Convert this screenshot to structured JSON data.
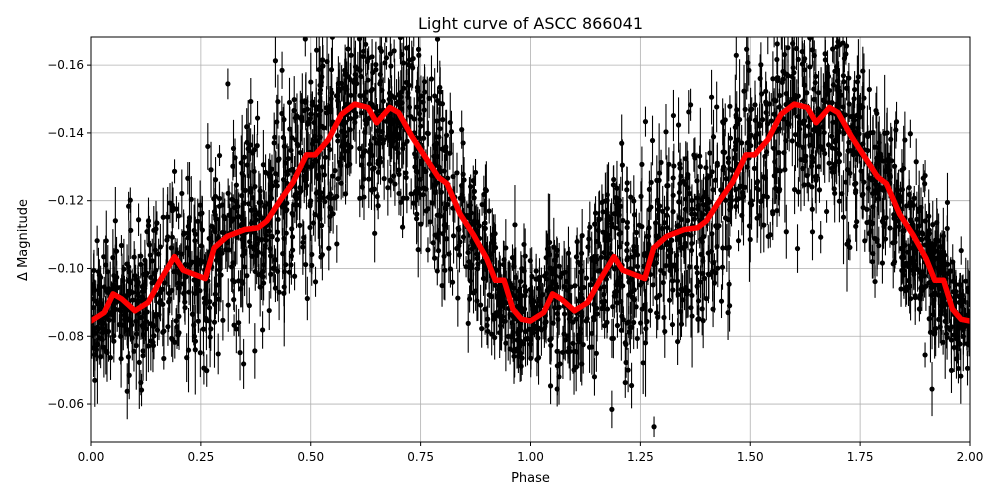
{
  "chart_data": {
    "type": "scatter",
    "title": "Light curve of ASCC 866041",
    "xlabel": "Phase",
    "ylabel": "Δ Magnitude",
    "xlim": [
      0,
      2
    ],
    "ylim": [
      -0.0488,
      -0.1683
    ],
    "y_inverted": true,
    "grid": true,
    "xticks": [
      "0.00",
      "0.25",
      "0.50",
      "0.75",
      "1.00",
      "1.25",
      "1.50",
      "1.75",
      "2.00"
    ],
    "xtick_values": [
      0,
      0.25,
      0.5,
      0.75,
      1,
      1.25,
      1.5,
      1.75,
      2
    ],
    "yticks": [
      "−0.16",
      "−0.14",
      "−0.12",
      "−0.10",
      "−0.08",
      "−0.06"
    ],
    "ytick_values": [
      -0.16,
      -0.14,
      -0.12,
      -0.1,
      -0.08,
      -0.06
    ],
    "scatter_color": "#000000",
    "scatter_spread": 0.012,
    "model_curve": {
      "color": "#ff0000",
      "x": [
        0.0,
        0.03,
        0.05,
        0.07,
        0.1,
        0.13,
        0.16,
        0.19,
        0.21,
        0.23,
        0.26,
        0.28,
        0.31,
        0.35,
        0.38,
        0.4,
        0.43,
        0.46,
        0.49,
        0.51,
        0.54,
        0.57,
        0.6,
        0.63,
        0.65,
        0.68,
        0.7,
        0.73,
        0.76,
        0.79,
        0.81,
        0.84,
        0.87,
        0.9,
        0.92,
        0.94,
        0.96,
        0.98,
        1.0,
        1.03,
        1.05,
        1.07,
        1.1,
        1.13,
        1.16,
        1.19,
        1.21,
        1.23,
        1.26,
        1.28,
        1.31,
        1.35,
        1.38,
        1.4,
        1.43,
        1.46,
        1.49,
        1.51,
        1.54,
        1.57,
        1.6,
        1.63,
        1.65,
        1.68,
        1.7,
        1.73,
        1.76,
        1.79,
        1.81,
        1.84,
        1.87,
        1.9,
        1.92,
        1.94,
        1.96,
        1.98,
        2.0
      ],
      "y": [
        -0.0845,
        -0.087,
        -0.0925,
        -0.091,
        -0.0875,
        -0.09,
        -0.097,
        -0.1035,
        -0.0995,
        -0.0985,
        -0.097,
        -0.106,
        -0.1095,
        -0.1115,
        -0.112,
        -0.114,
        -0.12,
        -0.1255,
        -0.1335,
        -0.1335,
        -0.138,
        -0.1455,
        -0.1485,
        -0.1475,
        -0.143,
        -0.1475,
        -0.146,
        -0.139,
        -0.133,
        -0.127,
        -0.125,
        -0.116,
        -0.11,
        -0.103,
        -0.0965,
        -0.0965,
        -0.088,
        -0.085,
        -0.0845,
        -0.087,
        -0.0925,
        -0.091,
        -0.0875,
        -0.09,
        -0.097,
        -0.1035,
        -0.0995,
        -0.0985,
        -0.097,
        -0.106,
        -0.1095,
        -0.1115,
        -0.112,
        -0.114,
        -0.12,
        -0.1255,
        -0.1335,
        -0.1335,
        -0.138,
        -0.1455,
        -0.1485,
        -0.1475,
        -0.143,
        -0.1475,
        -0.146,
        -0.139,
        -0.133,
        -0.127,
        -0.125,
        -0.116,
        -0.11,
        -0.103,
        -0.0965,
        -0.0965,
        -0.088,
        -0.085,
        -0.0845
      ]
    }
  }
}
